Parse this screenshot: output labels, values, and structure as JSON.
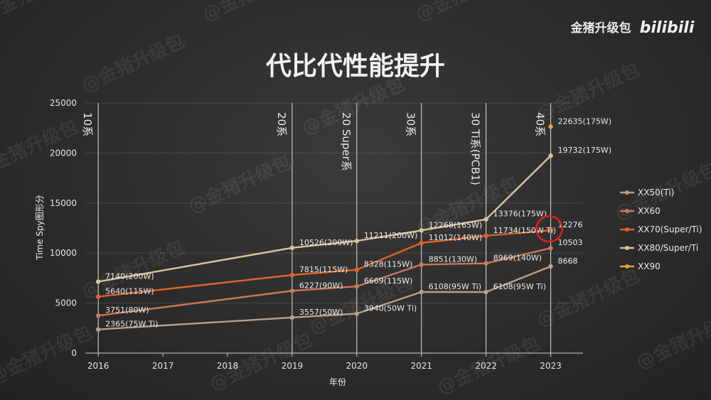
{
  "brand": {
    "name": "金猪升级包",
    "logo": "bilibili"
  },
  "watermark": "@金猪升级包",
  "chart_data": {
    "type": "line",
    "title": "代比代性能提升",
    "xlabel": "年份",
    "ylabel": "Time Spy图形分",
    "x_ticks": [
      2016,
      2017,
      2018,
      2019,
      2020,
      2021,
      2022,
      2023
    ],
    "y_ticks": [
      0,
      5000,
      10000,
      15000,
      20000,
      25000
    ],
    "xlim": [
      2015.8,
      2023.5
    ],
    "ylim": [
      0,
      25000
    ],
    "legend_position": "right",
    "generations": [
      {
        "label": "10系",
        "x": 2016
      },
      {
        "label": "20系",
        "x": 2019
      },
      {
        "label": "20 Super系",
        "x": 2020
      },
      {
        "label": "30系",
        "x": 2021
      },
      {
        "label": "30 Ti系(PCB1)",
        "x": 2022
      },
      {
        "label": "40系",
        "x": 2023
      }
    ],
    "series": [
      {
        "name": "XX50(Ti)",
        "color": "#b8a08a",
        "points": [
          {
            "x": 2016,
            "y": 2365,
            "label": "2365(75W Ti)"
          },
          {
            "x": 2019,
            "y": 3557,
            "label": "3557(50W)"
          },
          {
            "x": 2020,
            "y": 3940,
            "label": "3940(50W Ti)"
          },
          {
            "x": 2021,
            "y": 6108,
            "label": "6108(95W Ti)"
          },
          {
            "x": 2022,
            "y": 6108,
            "label": "6108(95W Ti)"
          },
          {
            "x": 2023,
            "y": 8668,
            "label": "8668"
          }
        ]
      },
      {
        "name": "XX60",
        "color": "#c8785a",
        "points": [
          {
            "x": 2016,
            "y": 3751,
            "label": "3751(80W)"
          },
          {
            "x": 2019,
            "y": 6227,
            "label": "6227(90W)"
          },
          {
            "x": 2020,
            "y": 6669,
            "label": "6669(115W)"
          },
          {
            "x": 2021,
            "y": 8851,
            "label": "8851(130W)"
          },
          {
            "x": 2022,
            "y": 8969,
            "label": "8969(140W)"
          },
          {
            "x": 2023,
            "y": 10503,
            "label": "10503"
          }
        ]
      },
      {
        "name": "XX70(Super/Ti)",
        "color": "#e0622a",
        "points": [
          {
            "x": 2016,
            "y": 5640,
            "label": "5640(115W)"
          },
          {
            "x": 2019,
            "y": 7815,
            "label": "7815(115W)"
          },
          {
            "x": 2020,
            "y": 8328,
            "label": "8328(115W)"
          },
          {
            "x": 2021,
            "y": 11012,
            "label": "11012(140W)"
          },
          {
            "x": 2022,
            "y": 11734,
            "label": "11734(150W Ti)"
          },
          {
            "x": 2023,
            "y": 12276,
            "label": "12276"
          }
        ]
      },
      {
        "name": "XX80/Super/Ti",
        "color": "#d8c49a",
        "points": [
          {
            "x": 2016,
            "y": 7140,
            "label": "7140(200W)"
          },
          {
            "x": 2019,
            "y": 10526,
            "label": "10526(200W)"
          },
          {
            "x": 2020,
            "y": 11211,
            "label": "11211(200W)"
          },
          {
            "x": 2021,
            "y": 12268,
            "label": "12268(165W)"
          },
          {
            "x": 2022,
            "y": 13376,
            "label": "13376(175W)"
          },
          {
            "x": 2023,
            "y": 19732,
            "label": "19732(175W)"
          }
        ]
      },
      {
        "name": "XX90",
        "color": "#e8a040",
        "points": [
          {
            "x": 2023,
            "y": 22635,
            "label": "22635(175W)"
          }
        ]
      }
    ],
    "annotation": {
      "type": "circle",
      "x": 2023,
      "y": 12276,
      "color": "#e02020"
    }
  }
}
